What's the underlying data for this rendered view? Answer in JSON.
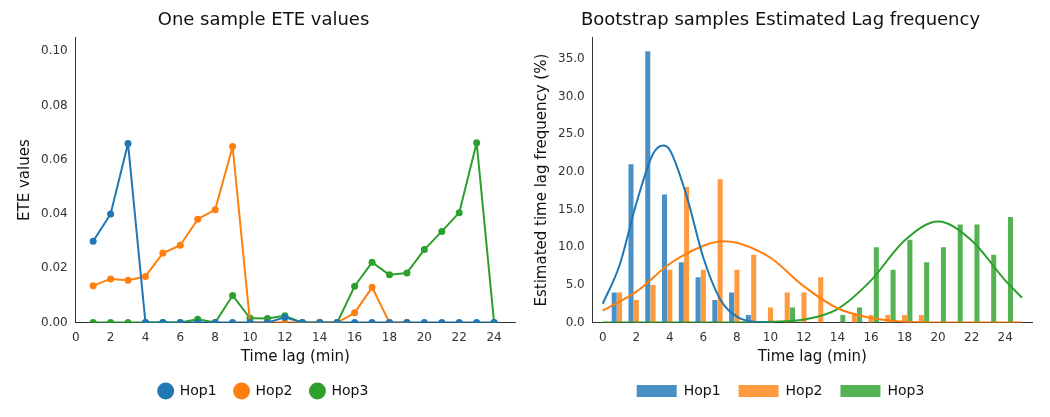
{
  "chart_data": [
    {
      "type": "line",
      "title": "One sample ETE values",
      "xlabel": "Time lag (min)",
      "ylabel": "ETE values",
      "x": [
        1,
        2,
        3,
        4,
        5,
        6,
        7,
        8,
        9,
        10,
        11,
        12,
        13,
        14,
        15,
        16,
        17,
        18,
        19,
        20,
        21,
        22,
        23,
        24
      ],
      "xlim": [
        0,
        25.2
      ],
      "xticks": [
        0,
        2,
        4,
        6,
        8,
        10,
        12,
        14,
        16,
        18,
        20,
        22,
        24
      ],
      "ylim": [
        0,
        0.105
      ],
      "yticks": [
        {
          "value": 0,
          "label": "0.00"
        },
        {
          "value": 0.02,
          "label": "0.02"
        },
        {
          "value": 0.04,
          "label": "0.04"
        },
        {
          "value": 0.06,
          "label": "0.06"
        },
        {
          "value": 0.08,
          "label": "0.08"
        },
        {
          "value": 0.1,
          "label": "0.10"
        }
      ],
      "marker": "circle",
      "grid": false,
      "legend": "bottom",
      "series": [
        {
          "name": "Hop1",
          "color": "#1f77b4",
          "values": [
            0.03,
            0.04,
            0.066,
            0,
            0,
            0,
            0,
            0,
            0,
            0,
            0,
            0.002,
            0,
            0,
            0,
            0,
            0,
            0,
            0,
            0,
            0,
            0,
            0,
            0
          ]
        },
        {
          "name": "Hop2",
          "color": "#ff7f0e",
          "values": [
            0.0136,
            0.0161,
            0.0156,
            0.017,
            0.0256,
            0.0285,
            0.0381,
            0.0416,
            0.0649,
            0,
            0,
            0,
            0,
            0,
            0,
            0.0036,
            0.013,
            0,
            0,
            null,
            null,
            null,
            null,
            null
          ]
        },
        {
          "name": "Hop3",
          "color": "#2ca02c",
          "values": [
            0,
            0,
            0,
            0,
            0,
            0,
            0.0012,
            0,
            0.01,
            0.0016,
            0.0015,
            0.0025,
            0,
            0,
            0,
            0.0134,
            0.0222,
            0.0176,
            0.0183,
            0.0269,
            0.0336,
            0.0405,
            0.0663,
            0
          ]
        }
      ]
    },
    {
      "type": "bar",
      "title": "Bootstrap samples Estimated Lag frequency",
      "xlabel": "Time lag (min)",
      "ylabel": "Estimated time lag frequency (%)",
      "x": [
        1,
        2,
        3,
        4,
        5,
        6,
        7,
        8,
        9,
        10,
        11,
        12,
        13,
        14,
        15,
        16,
        17,
        18,
        19,
        20,
        21,
        22,
        23,
        24
      ],
      "xlim": [
        -0.6,
        25.6
      ],
      "xticks": [
        0,
        2,
        4,
        6,
        8,
        10,
        12,
        14,
        16,
        18,
        20,
        22,
        24
      ],
      "ylim": [
        0,
        37.8
      ],
      "yticks": [
        {
          "value": 0,
          "label": "0.0"
        },
        {
          "value": 5,
          "label": "5.0"
        },
        {
          "value": 10,
          "label": "10.0"
        },
        {
          "value": 15,
          "label": "15.0"
        },
        {
          "value": 20,
          "label": "20.0"
        },
        {
          "value": 25,
          "label": "25.0"
        },
        {
          "value": 30,
          "label": "30.0"
        },
        {
          "value": 35,
          "label": "35.0"
        }
      ],
      "grid": false,
      "legend": "bottom",
      "series": [
        {
          "name": "Hop1",
          "color": "#4a90c4",
          "values": [
            4,
            21,
            36,
            17,
            8,
            6,
            3,
            4,
            1,
            0,
            0,
            0,
            0,
            0,
            0,
            0,
            0,
            0,
            0,
            0,
            0,
            0,
            0,
            0
          ]
        },
        {
          "name": "Hop2",
          "color": "#ff9a3e",
          "values": [
            4,
            3,
            5,
            7,
            18,
            7,
            19,
            7,
            9,
            2,
            4,
            4,
            6,
            0,
            1,
            1,
            1,
            1,
            1,
            0,
            0,
            0,
            0,
            0
          ]
        },
        {
          "name": "Hop3",
          "color": "#55b355",
          "values": [
            0,
            0,
            0,
            0,
            0,
            0,
            0,
            0,
            0,
            0,
            2,
            0,
            0,
            1,
            2,
            10,
            7,
            11,
            8,
            10,
            13,
            13,
            9,
            14
          ]
        },
        {
          "type": "line",
          "color": "#1f77b4",
          "x": [
            0,
            1,
            2,
            3,
            3.6,
            4,
            5,
            6,
            7,
            8,
            9,
            10
          ],
          "values": [
            2.5,
            7.6,
            15.8,
            22.4,
            23.5,
            22.9,
            16.8,
            8.6,
            3.1,
            0.8,
            0.1,
            0
          ]
        },
        {
          "type": "line",
          "color": "#ff7f0e",
          "x": [
            0,
            2,
            4,
            6,
            7.2,
            8,
            10,
            12,
            14,
            16,
            18,
            20,
            25
          ],
          "values": [
            1.6,
            4.1,
            7.8,
            10.2,
            10.8,
            10.6,
            8.6,
            4.8,
            1.9,
            0.6,
            0.1,
            0,
            0
          ]
        },
        {
          "type": "line",
          "color": "#2ca02c",
          "x": [
            0,
            8,
            10,
            12,
            14,
            16,
            18,
            20,
            22,
            24,
            25
          ],
          "values": [
            0,
            0,
            0.1,
            0.4,
            1.8,
            5.6,
            10.9,
            13.4,
            10.9,
            5.6,
            3.3
          ]
        }
      ]
    }
  ]
}
